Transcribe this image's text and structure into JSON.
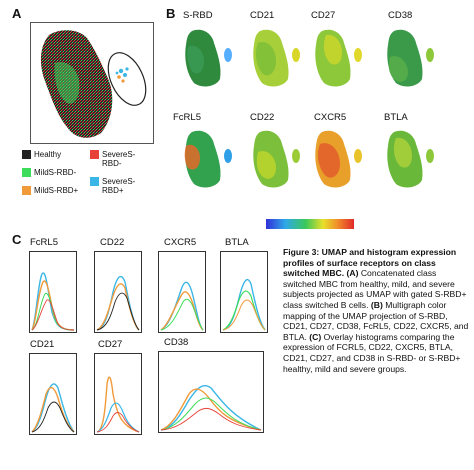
{
  "panels": {
    "a_letter": "A",
    "b_letter": "B",
    "c_letter": "C"
  },
  "legend": [
    {
      "label": "Healthy",
      "color": "#222222"
    },
    {
      "label": "SevereS-RBD-",
      "color": "#e8413a"
    },
    {
      "label": "MildS-RBD-",
      "color": "#3ddc5a"
    },
    {
      "label": "SevereS-RBD+",
      "color": "#3ab6e6"
    },
    {
      "label": "MildS-RBD+",
      "color": "#f09a3a"
    }
  ],
  "umap_markers": [
    "S-RBD",
    "CD21",
    "CD27",
    "CD38",
    "FcRL5",
    "CD22",
    "CXCR5",
    "BTLA"
  ],
  "histogram_markers": [
    "FcRL5",
    "CD22",
    "CXCR5",
    "BTLA",
    "CD21",
    "CD27",
    "CD38"
  ],
  "caption": {
    "heading": "Figure 3: UMAP and histogram expression profiles of surface receptors on class switched MBC.",
    "a_tag": "(A)",
    "a_text": " Concatenated class switched MBC from healthy, mild, and severe subjects projected as UMAP with gated S-RBD+ class switched B cells.",
    "b_tag": "(B)",
    "b_text": " Multigraph color mapping of the UMAP projection of S-RBD, CD21, CD27, CD38, FcRL5, CD22, CXCR5, and BTLA.",
    "c_tag": "(C)",
    "c_text": " Overlay histograms comparing the expression of FCRL5, CD22, CXCR5, BTLA, CD21, CD27, and CD38 in S-RBD- or S-RBD+ healthy, mild and severe groups."
  }
}
